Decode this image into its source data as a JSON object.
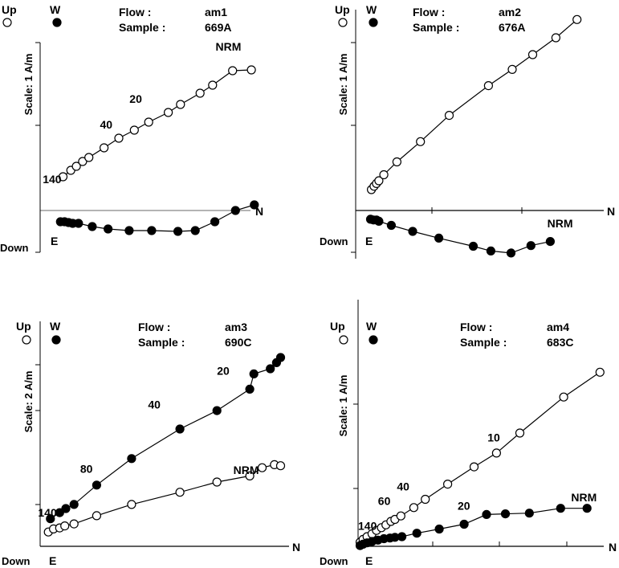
{
  "chart_data": [
    {
      "type": "scatter",
      "subtype": "zijderveld",
      "flow_label": "Flow :",
      "flow": "am1",
      "sample_label": "Sample :",
      "sample": "669A",
      "legend_up": "Up",
      "legend_w": "W",
      "axis_down": "Down",
      "axis_e": "E",
      "axis_n": "N",
      "scale_label": "Scale: 1 A/m",
      "scale_tick_count": 3,
      "open_series": {
        "name": "Up",
        "x": [
          0.62,
          0.83,
          0.98,
          1.15,
          1.32,
          1.73,
          2.13,
          2.55,
          2.94,
          3.47,
          3.8,
          4.33,
          4.67,
          5.21,
          5.72
        ],
        "y": [
          0.42,
          0.5,
          0.55,
          0.61,
          0.66,
          0.78,
          0.9,
          1.0,
          1.1,
          1.22,
          1.32,
          1.46,
          1.56,
          1.74,
          1.75
        ]
      },
      "filled_series": {
        "name": "W",
        "x": [
          0.55,
          0.66,
          0.77,
          0.88,
          1.04,
          1.41,
          1.84,
          2.41,
          3.02,
          3.73,
          4.2,
          4.73,
          5.29,
          5.8
        ],
        "y": [
          -0.14,
          -0.14,
          -0.15,
          -0.16,
          -0.16,
          -0.2,
          -0.23,
          -0.25,
          -0.25,
          -0.26,
          -0.25,
          -0.14,
          0.0,
          0.07
        ]
      },
      "annotations": [
        {
          "text": "140",
          "x": 0.07,
          "y": 0.34
        },
        {
          "text": "40",
          "x": 1.62,
          "y": 1.02
        },
        {
          "text": "20",
          "x": 2.42,
          "y": 1.34
        },
        {
          "text": "NRM",
          "x": 4.75,
          "y": 1.99
        }
      ]
    },
    {
      "type": "scatter",
      "subtype": "zijderveld",
      "flow_label": "Flow :",
      "flow": "am2",
      "sample_label": "Sample :",
      "sample": "676A",
      "legend_up": "Up",
      "legend_w": "W",
      "axis_down": "Down",
      "axis_e": "E",
      "axis_n": "N",
      "scale_label": "Scale: 1 A/m",
      "scale_tick_count": 3,
      "open_series": {
        "name": "Up",
        "x": [
          0.53,
          0.62,
          0.7,
          0.78,
          0.95,
          1.39,
          2.18,
          3.15,
          4.47,
          5.27,
          5.96,
          6.74,
          7.45
        ],
        "y": [
          0.31,
          0.36,
          0.4,
          0.44,
          0.53,
          0.72,
          1.02,
          1.41,
          1.85,
          2.09,
          2.31,
          2.56,
          2.83
        ]
      },
      "filled_series": {
        "name": "W",
        "x": [
          0.5,
          0.6,
          0.7,
          0.78,
          1.2,
          1.92,
          2.8,
          3.96,
          4.55,
          5.23,
          5.9,
          6.55
        ],
        "y": [
          -0.13,
          -0.14,
          -0.14,
          -0.16,
          -0.22,
          -0.31,
          -0.41,
          -0.53,
          -0.6,
          -0.63,
          -0.52,
          -0.46
        ]
      },
      "annotations": [
        {
          "text": "NRM",
          "x": 6.45,
          "y": -0.25
        }
      ]
    },
    {
      "type": "scatter",
      "subtype": "zijderveld",
      "flow_label": "Flow :",
      "flow": "am3",
      "sample_label": "Sample :",
      "sample": "690C",
      "legend_up": "Up",
      "legend_w": "W",
      "axis_down": "Down",
      "axis_e": "E",
      "axis_n": "N",
      "scale_label": "Scale: 2 A/m",
      "scale_tick_count": 3,
      "open_series": {
        "name": "Up",
        "x": [
          0.08,
          0.13,
          0.19,
          0.24,
          0.33,
          0.55,
          0.89,
          1.36,
          1.72,
          2.04,
          2.16,
          2.28,
          2.34
        ],
        "y": [
          0.14,
          0.17,
          0.18,
          0.2,
          0.22,
          0.3,
          0.41,
          0.53,
          0.63,
          0.69,
          0.77,
          0.8,
          0.79
        ]
      },
      "filled_series": {
        "name": "W",
        "x": [
          0.1,
          0.19,
          0.25,
          0.33,
          0.55,
          0.89,
          1.36,
          1.72,
          2.04,
          2.08,
          2.24,
          2.3,
          2.34
        ],
        "y": [
          0.27,
          0.33,
          0.37,
          0.41,
          0.6,
          0.86,
          1.15,
          1.33,
          1.54,
          1.69,
          1.74,
          1.8,
          1.85
        ]
      },
      "annotations": [
        {
          "text": "140",
          "x": -0.02,
          "y": 0.29
        },
        {
          "text": "80",
          "x": 0.39,
          "y": 0.72
        },
        {
          "text": "40",
          "x": 1.05,
          "y": 1.35
        },
        {
          "text": "20",
          "x": 1.72,
          "y": 1.68
        },
        {
          "text": "NRM",
          "x": 1.88,
          "y": 0.71
        }
      ]
    },
    {
      "type": "scatter",
      "subtype": "zijderveld",
      "flow_label": "Flow :",
      "flow": "am4",
      "sample_label": "Sample :",
      "sample": "683C",
      "legend_up": "Up",
      "legend_w": "W",
      "axis_down": "Down",
      "axis_e": "E",
      "axis_n": "N",
      "scale_label": "Scale: 1 A/m",
      "scale_tick_count": 3,
      "open_series": {
        "name": "Up",
        "x": [
          0.04,
          0.1,
          0.18,
          0.28,
          0.37,
          0.47,
          0.56,
          0.66,
          0.74,
          0.86,
          1.12,
          1.35,
          1.8,
          2.33,
          2.78,
          3.25,
          4.13,
          4.86
        ],
        "y": [
          0.06,
          0.1,
          0.14,
          0.18,
          0.23,
          0.27,
          0.31,
          0.36,
          0.39,
          0.44,
          0.56,
          0.68,
          0.9,
          1.15,
          1.35,
          1.64,
          2.16,
          2.52
        ]
      },
      "filled_series": {
        "name": "W",
        "x": [
          0.04,
          0.1,
          0.18,
          0.28,
          0.4,
          0.52,
          0.64,
          0.74,
          0.88,
          1.18,
          1.63,
          2.13,
          2.58,
          2.96,
          3.44,
          4.07,
          4.6
        ],
        "y": [
          0.01,
          0.03,
          0.05,
          0.07,
          0.09,
          0.11,
          0.12,
          0.13,
          0.14,
          0.19,
          0.25,
          0.32,
          0.46,
          0.47,
          0.48,
          0.55,
          0.55
        ]
      },
      "annotations": [
        {
          "text": "140",
          "x": 0.0,
          "y": 0.24
        },
        {
          "text": "60",
          "x": 0.4,
          "y": 0.6
        },
        {
          "text": "40",
          "x": 0.78,
          "y": 0.81
        },
        {
          "text": "20",
          "x": 2.0,
          "y": 0.53
        },
        {
          "text": "10",
          "x": 2.6,
          "y": 1.52
        },
        {
          "text": "NRM",
          "x": 4.28,
          "y": 0.65
        }
      ]
    }
  ]
}
